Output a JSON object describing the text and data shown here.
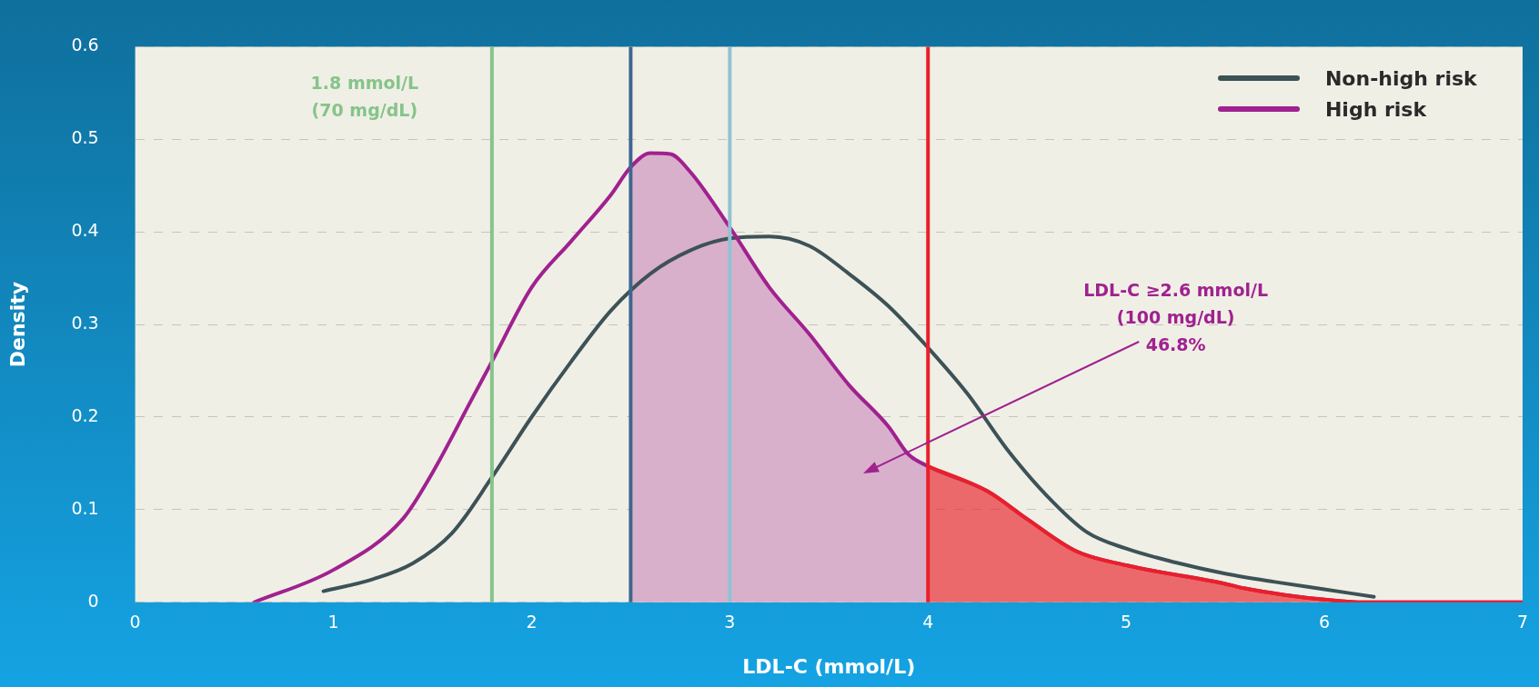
{
  "chart_data": {
    "type": "line",
    "xlabel": "LDL-C (mmol/L)",
    "ylabel": "Density",
    "xlim": [
      0,
      7
    ],
    "xticks": [
      0,
      1,
      2,
      3,
      4,
      5,
      6,
      7
    ],
    "ylim": [
      0,
      0.6
    ],
    "yticks": [
      0,
      0.1,
      0.2,
      0.3,
      0.4,
      0.5,
      0.6
    ],
    "grid": "y",
    "legend": "top right",
    "marker": "none",
    "line_style": "solid",
    "series": [
      {
        "type": "area",
        "color": "#d8b0cb",
        "x": [
          2.5,
          2.6,
          2.7,
          2.8,
          3.0,
          3.2,
          3.4,
          3.6,
          3.8,
          3.9,
          4.0
        ],
        "values": [
          0.47,
          0.485,
          0.484,
          0.465,
          0.405,
          0.34,
          0.29,
          0.235,
          0.19,
          0.16,
          0.147
        ]
      },
      {
        "name": "Non-high risk",
        "type": "line",
        "color": "#3d5257",
        "x": [
          0.95,
          1.2,
          1.4,
          1.6,
          1.8,
          2.0,
          2.2,
          2.4,
          2.6,
          2.8,
          3.0,
          3.2,
          3.4,
          3.6,
          3.8,
          4.0,
          4.2,
          4.4,
          4.6,
          4.8,
          5.0,
          5.25,
          5.5,
          5.75,
          6.0,
          6.25
        ],
        "values": [
          0.012,
          0.025,
          0.042,
          0.075,
          0.135,
          0.2,
          0.26,
          0.315,
          0.355,
          0.38,
          0.393,
          0.395,
          0.385,
          0.355,
          0.32,
          0.275,
          0.225,
          0.165,
          0.115,
          0.076,
          0.058,
          0.043,
          0.031,
          0.022,
          0.014,
          0.006
        ]
      },
      {
        "name": "High risk",
        "type": "line",
        "color": "#a0218f",
        "x": [
          0.6,
          1.0,
          1.35,
          1.5,
          1.7,
          1.8,
          2.0,
          2.2,
          2.4,
          2.5,
          2.6,
          2.7,
          2.8,
          3.0,
          3.2,
          3.4,
          3.6,
          3.8,
          3.9,
          4.0,
          4.3,
          4.5,
          4.75,
          5.0,
          5.5,
          5.6,
          5.8,
          6.0,
          6.2,
          7.0
        ],
        "values": [
          0,
          0.035,
          0.09,
          0.14,
          0.22,
          0.26,
          0.34,
          0.39,
          0.44,
          0.47,
          0.485,
          0.484,
          0.465,
          0.405,
          0.34,
          0.29,
          0.235,
          0.19,
          0.16,
          0.147,
          0.12,
          0.09,
          0.055,
          0.04,
          0.02,
          0.015,
          0.008,
          0.003,
          0,
          0
        ]
      },
      {
        "type": "area",
        "color": "#e8202a",
        "x": [
          4.0,
          4.3,
          4.5,
          4.75,
          5.0,
          5.5,
          5.6,
          5.8,
          6.0,
          6.2,
          7.0
        ],
        "values": [
          0.147,
          0.12,
          0.09,
          0.055,
          0.04,
          0.02,
          0.015,
          0.008,
          0.003,
          0,
          0
        ]
      }
    ],
    "ref_lines": [
      {
        "axis": "x",
        "value": 1.8,
        "label": "1.8 mmol/L\n(70 mg/dL)",
        "color": "#86c48a"
      },
      {
        "axis": "x",
        "value": 2.5,
        "color": "#3f6690"
      },
      {
        "axis": "x",
        "value": 3.0,
        "color": "#8fc3d2"
      },
      {
        "axis": "x",
        "value": 4.0,
        "color": "#e8202a"
      }
    ],
    "annotations": [
      "LDL-C ≥2.6 mmol/L\n(100 mg/dL)\n46.8%"
    ]
  }
}
